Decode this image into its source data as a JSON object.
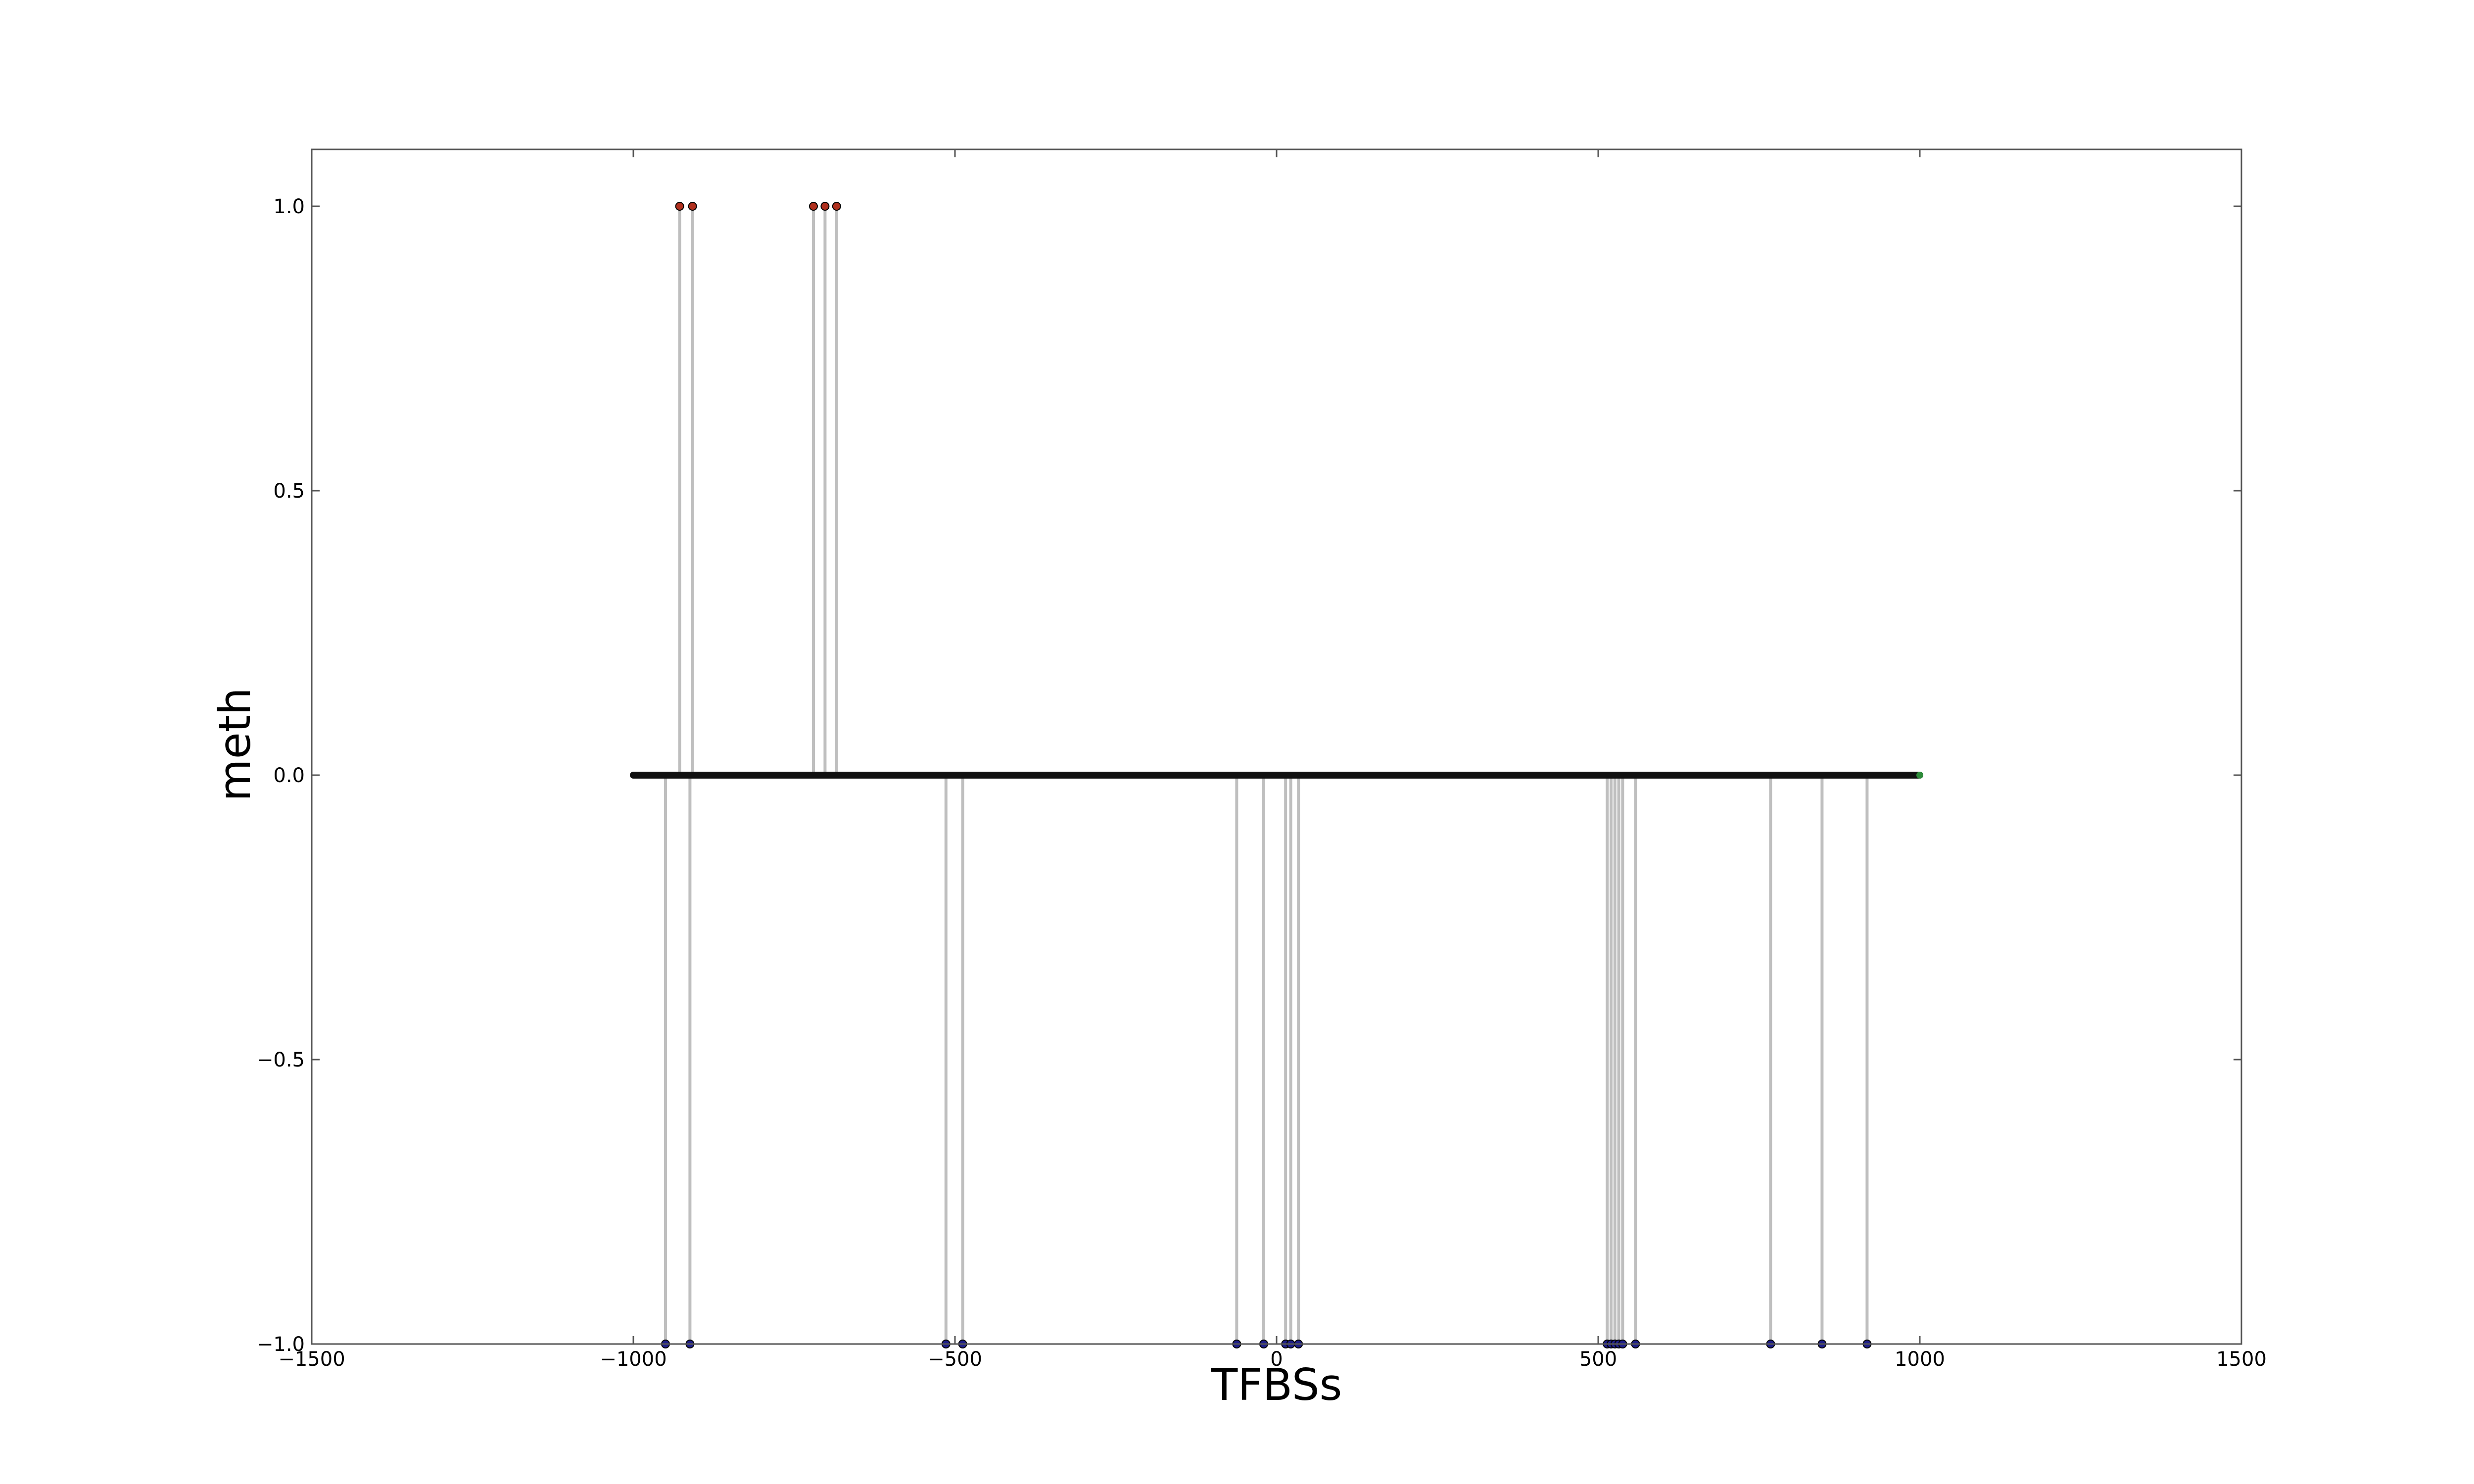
{
  "chart_data": {
    "type": "scatter",
    "xlabel": "TFBSs",
    "ylabel": "meth",
    "xlim": [
      -1500,
      1500
    ],
    "ylim": [
      -1.0,
      1.1
    ],
    "x_ticks": [
      -1500,
      -1000,
      -500,
      0,
      500,
      1000,
      1500
    ],
    "x_tick_labels": [
      "−1500",
      "−1000",
      "−500",
      "0",
      "500",
      "1000",
      "1500"
    ],
    "y_ticks": [
      -1.0,
      -0.5,
      0.0,
      0.5,
      1.0
    ],
    "y_tick_labels": [
      "−1.0",
      "−0.5",
      "0.0",
      "0.5",
      "1.0"
    ],
    "grid": false,
    "colors": {
      "stem": "#bfbfbf",
      "methylated": "#b0301e",
      "unmethylated": "#1f1f8a",
      "baseline": "#111111",
      "baseline_end": "#2e8b3a",
      "axes": "#555555"
    },
    "series": [
      {
        "values": [
          {
            "x": -928,
            "y": 1.0
          },
          {
            "x": -908,
            "y": 1.0
          },
          {
            "x": -720,
            "y": 1.0
          },
          {
            "x": -702,
            "y": 1.0
          },
          {
            "x": -684,
            "y": 1.0
          },
          {
            "x": -950,
            "y": -1.0
          },
          {
            "x": -912,
            "y": -1.0
          },
          {
            "x": -514,
            "y": -1.0
          },
          {
            "x": -488,
            "y": -1.0
          },
          {
            "x": -62,
            "y": -1.0
          },
          {
            "x": -20,
            "y": -1.0
          },
          {
            "x": 14,
            "y": -1.0
          },
          {
            "x": 22,
            "y": -1.0
          },
          {
            "x": 34,
            "y": -1.0
          },
          {
            "x": 514,
            "y": -1.0
          },
          {
            "x": 520,
            "y": -1.0
          },
          {
            "x": 526,
            "y": -1.0
          },
          {
            "x": 532,
            "y": -1.0
          },
          {
            "x": 538,
            "y": -1.0
          },
          {
            "x": 558,
            "y": -1.0
          },
          {
            "x": 768,
            "y": -1.0
          },
          {
            "x": 848,
            "y": -1.0
          },
          {
            "x": 918,
            "y": -1.0
          }
        ]
      }
    ],
    "baseline": {
      "y": 0.0,
      "x_start": -1000,
      "x_end": 1000
    }
  }
}
